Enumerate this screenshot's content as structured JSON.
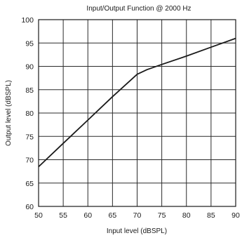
{
  "chart_data": {
    "type": "line",
    "title": "Input/Output Function @ 2000 Hz",
    "xlabel": "Input level (dBSPL)",
    "ylabel": "Output level (dBSPL)",
    "xlim": [
      50,
      90
    ],
    "ylim": [
      60,
      100
    ],
    "xticks": [
      50,
      55,
      60,
      65,
      70,
      75,
      80,
      85,
      90
    ],
    "yticks": [
      60,
      65,
      70,
      75,
      80,
      85,
      90,
      95,
      100
    ],
    "grid": true,
    "series": [
      {
        "x": [
          50,
          55,
          60,
          65,
          70,
          72,
          75,
          80,
          85,
          90
        ],
        "values": [
          68.5,
          73.5,
          78.5,
          83.5,
          88.3,
          89.3,
          90.4,
          92.2,
          94.1,
          96.0
        ]
      }
    ],
    "colors": {
      "line": "#1a1a1a",
      "grid": "#2b2b2b",
      "background": "#ffffff"
    }
  }
}
